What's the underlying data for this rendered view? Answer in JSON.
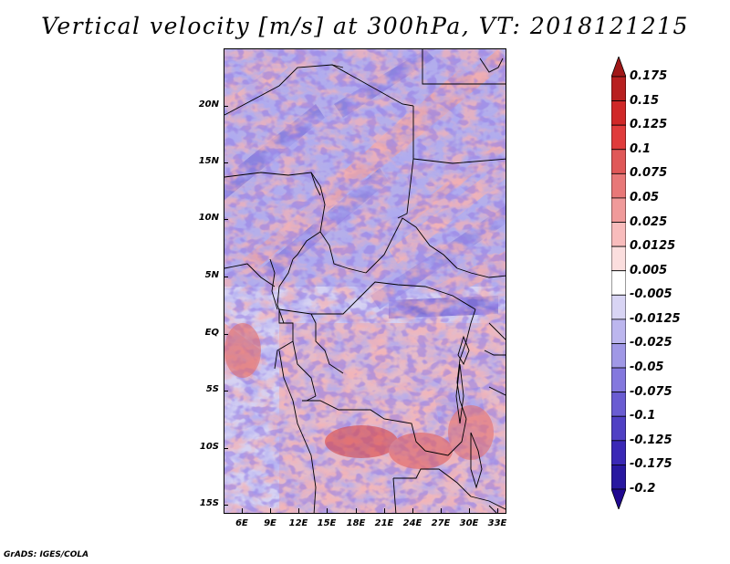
{
  "title": "Vertical velocity [m/s] at 300hPa, VT: 2018121215",
  "footer": "GrADS: IGES/COLA",
  "map": {
    "lat_labels": [
      "20N",
      "15N",
      "10N",
      "5N",
      "EQ",
      "5S",
      "10S",
      "15S"
    ],
    "lon_labels": [
      "6E",
      "9E",
      "12E",
      "15E",
      "18E",
      "21E",
      "24E",
      "27E",
      "30E",
      "33E"
    ],
    "field": "vertical velocity"
  },
  "colorbar": {
    "labels": [
      "0.175",
      "0.15",
      "0.125",
      "0.1",
      "0.075",
      "0.05",
      "0.025",
      "0.0125",
      "0.005",
      "-0.005",
      "-0.0125",
      "-0.025",
      "-0.05",
      "-0.075",
      "-0.1",
      "-0.125",
      "-0.175",
      "-0.2"
    ],
    "colors": [
      "#a01818",
      "#b82020",
      "#d02828",
      "#e03c3c",
      "#e05858",
      "#e87878",
      "#f09a9a",
      "#f8bcbc",
      "#fbdede",
      "#ffffff",
      "#d8d4f4",
      "#bcb6ee",
      "#a098e6",
      "#8478de",
      "#6a5cd2",
      "#5040c4",
      "#3a28b6",
      "#2818a0",
      "#200890"
    ]
  }
}
